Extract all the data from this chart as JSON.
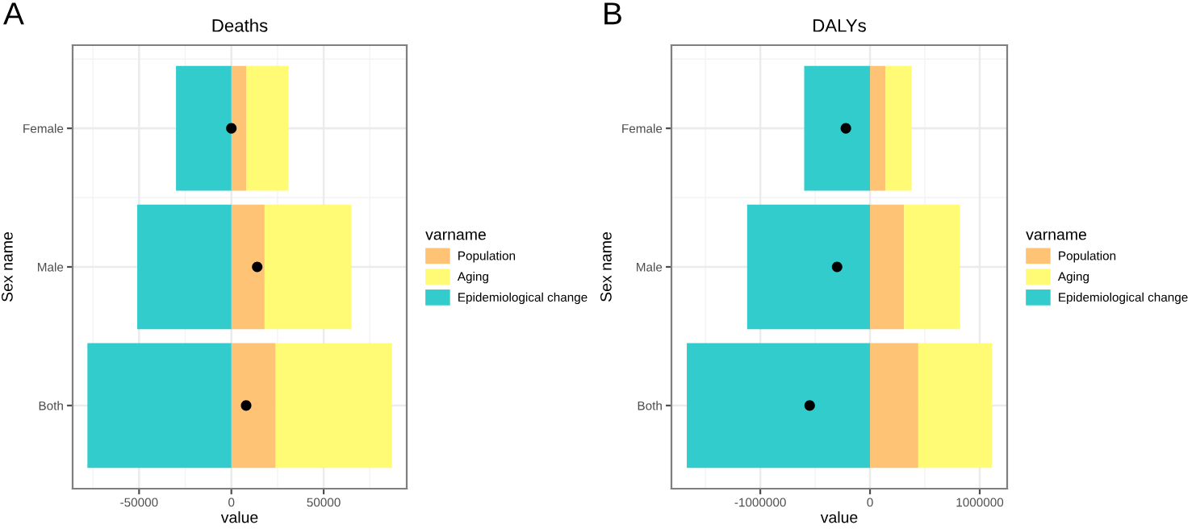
{
  "chart_data": [
    {
      "type": "bar",
      "orientation": "horizontal",
      "stacked": true,
      "title": "Deaths",
      "xlabel": "value",
      "ylabel": "Sex name",
      "legend_title": "varname",
      "annotations": [
        "A"
      ],
      "categories": [
        "Female",
        "Male",
        "Both"
      ],
      "series": [
        {
          "name": "Population",
          "color": "#ffc375",
          "values": [
            8000,
            18000,
            24000
          ]
        },
        {
          "name": "Aging",
          "color": "#fffb75",
          "values": [
            23000,
            47000,
            63000
          ]
        },
        {
          "name": "Epidemiological change",
          "color": "#33cccc",
          "values": [
            -30000,
            -51000,
            -78000
          ]
        },
        {
          "type": "scatter",
          "color": "#000000",
          "x": [
            "Female",
            "Male",
            "Both"
          ],
          "values": [
            0,
            14000,
            8000
          ]
        }
      ],
      "xlim": [
        -86000,
        95000
      ],
      "xticks": [
        -50000,
        0,
        50000
      ],
      "grid": true,
      "legend": "right"
    },
    {
      "type": "bar",
      "orientation": "horizontal",
      "stacked": true,
      "title": "DALYs",
      "xlabel": "value",
      "ylabel": "Sex name",
      "legend_title": "varname",
      "annotations": [
        "B"
      ],
      "categories": [
        "Female",
        "Male",
        "Both"
      ],
      "series": [
        {
          "name": "Population",
          "color": "#ffc375",
          "values": [
            140000,
            310000,
            440000
          ]
        },
        {
          "name": "Aging",
          "color": "#fffb75",
          "values": [
            240000,
            510000,
            670000
          ]
        },
        {
          "name": "Epidemiological change",
          "color": "#33cccc",
          "values": [
            -600000,
            -1120000,
            -1670000
          ]
        },
        {
          "type": "scatter",
          "color": "#000000",
          "x": [
            "Female",
            "Male",
            "Both"
          ],
          "values": [
            -220000,
            -300000,
            -550000
          ]
        }
      ],
      "xlim": [
        -1810000,
        1250000
      ],
      "xticks": [
        -1000000,
        0,
        1000000
      ],
      "grid": true,
      "legend": "right"
    }
  ]
}
